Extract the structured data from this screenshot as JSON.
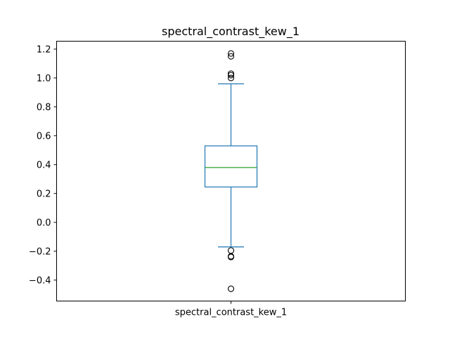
{
  "chart_data": {
    "type": "box",
    "title": "spectral_contrast_kew_1",
    "xlabel": "",
    "ylabel": "",
    "categories": [
      "spectral_contrast_kew_1"
    ],
    "ylim": [
      -0.545,
      1.255
    ],
    "yticks": [
      -0.4,
      -0.2,
      0.0,
      0.2,
      0.4,
      0.6,
      0.8,
      1.0,
      1.2
    ],
    "ytick_labels": [
      "−0.4",
      "−0.2",
      "0.0",
      "0.2",
      "0.4",
      "0.6",
      "0.8",
      "1.0",
      "1.2"
    ],
    "grid": false,
    "series": [
      {
        "name": "spectral_contrast_kew_1",
        "whisker_low": -0.17,
        "q1": 0.245,
        "median": 0.38,
        "q3": 0.53,
        "whisker_high": 0.96,
        "outliers": [
          1.17,
          1.15,
          1.03,
          1.02,
          1.0,
          -0.195,
          -0.235,
          -0.24,
          -0.46
        ]
      }
    ],
    "colors": {
      "box": "#1f77b4",
      "median": "#2ca02c",
      "outlier": "#000000",
      "axes": "#000000"
    }
  }
}
